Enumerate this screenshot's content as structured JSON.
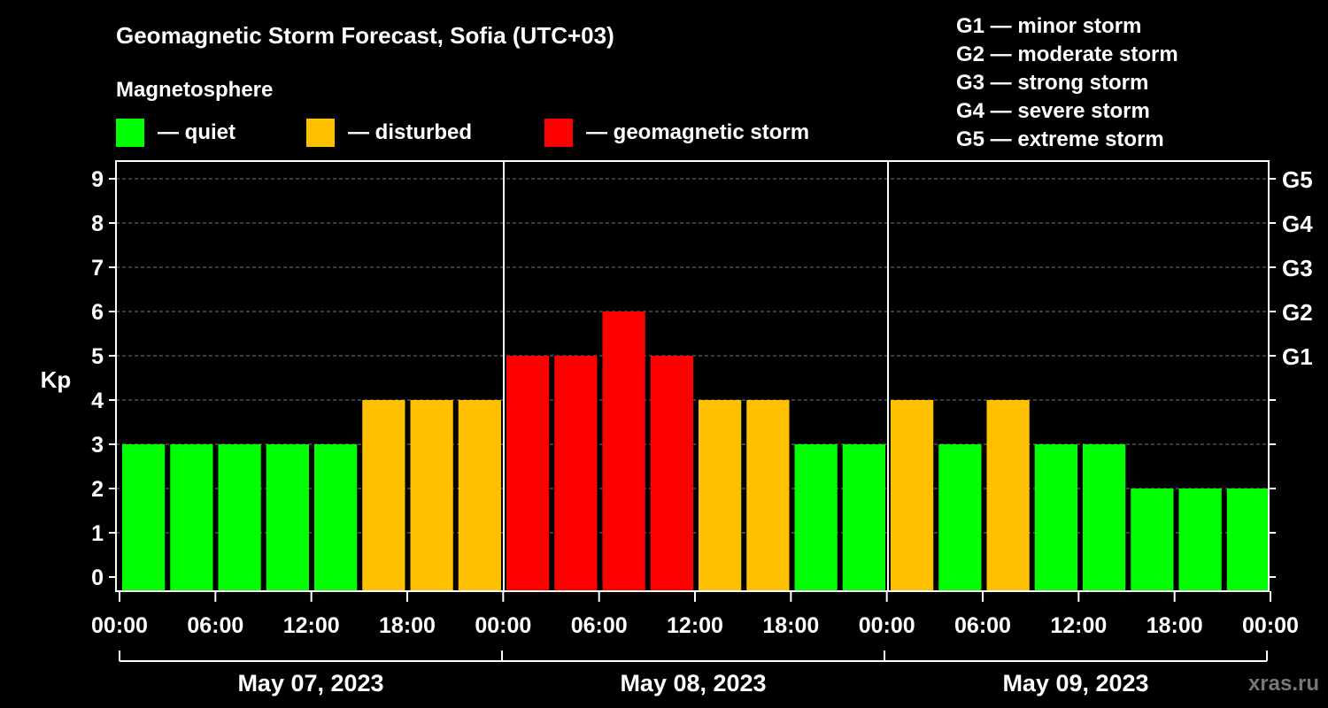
{
  "chart_data": {
    "type": "bar",
    "title": "Geomagnetic Storm Forecast, Sofia (UTC+03)",
    "legend_title": "Magnetosphere",
    "legend": [
      {
        "label": "— quiet",
        "color": "#00ff00"
      },
      {
        "label": "— disturbed",
        "color": "#ffc000"
      },
      {
        "label": "— geomagnetic storm",
        "color": "#ff0000"
      }
    ],
    "storm_scale": [
      "G1 — minor storm",
      "G2 — moderate storm",
      "G3 — strong storm",
      "G4 — severe storm",
      "G5 — extreme storm"
    ],
    "ylabel": "Kp",
    "ylim": [
      0,
      9
    ],
    "y_ticks": [
      "0",
      "1",
      "2",
      "3",
      "4",
      "5",
      "6",
      "7",
      "8",
      "9"
    ],
    "right_ticks": [
      {
        "label": "G1",
        "kp": 5
      },
      {
        "label": "G2",
        "kp": 6
      },
      {
        "label": "G3",
        "kp": 7
      },
      {
        "label": "G4",
        "kp": 8
      },
      {
        "label": "G5",
        "kp": 9
      }
    ],
    "grid": true,
    "x_ticks": [
      "00:00",
      "06:00",
      "12:00",
      "18:00",
      "00:00",
      "06:00",
      "12:00",
      "18:00",
      "00:00",
      "06:00",
      "12:00",
      "18:00",
      "00:00"
    ],
    "days": [
      "May 07, 2023",
      "May 08, 2023",
      "May 09, 2023"
    ],
    "interval_hours": 3,
    "values": [
      3,
      3,
      3,
      3,
      3,
      4,
      4,
      4,
      5,
      5,
      6,
      5,
      4,
      4,
      3,
      3,
      4,
      3,
      4,
      3,
      3,
      2,
      2,
      2
    ],
    "status": [
      "quiet",
      "quiet",
      "quiet",
      "quiet",
      "quiet",
      "disturbed",
      "disturbed",
      "disturbed",
      "storm",
      "storm",
      "storm",
      "storm",
      "disturbed",
      "disturbed",
      "quiet",
      "quiet",
      "disturbed",
      "quiet",
      "disturbed",
      "quiet",
      "quiet",
      "quiet",
      "quiet",
      "quiet"
    ],
    "colors": {
      "quiet": "#00ff00",
      "disturbed": "#ffc000",
      "storm": "#ff0000",
      "background": "#000000",
      "axes": "#ffffff"
    }
  },
  "watermark": "xras.ru"
}
